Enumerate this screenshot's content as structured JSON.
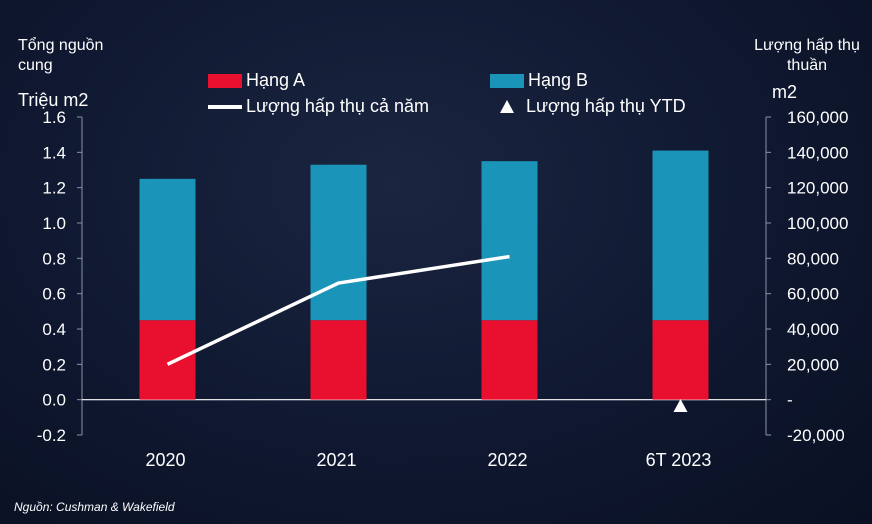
{
  "chart_data": {
    "type": "bar",
    "categories": [
      "2020",
      "2021",
      "2022",
      "6T 2023"
    ],
    "series": [
      {
        "name": "Hạng A",
        "axis": "left",
        "kind": "stacked-bar",
        "color": "#e8102e",
        "values": [
          0.45,
          0.45,
          0.45,
          0.45
        ]
      },
      {
        "name": "Hạng B",
        "axis": "left",
        "kind": "stacked-bar",
        "color": "#1a94b8",
        "values": [
          0.8,
          0.88,
          0.9,
          0.96
        ]
      },
      {
        "name": "Lượng hấp thụ cả năm",
        "axis": "right",
        "kind": "line",
        "color": "#ffffff",
        "values": [
          20000,
          66000,
          81000,
          null
        ]
      },
      {
        "name": "Lượng hấp thụ YTD",
        "axis": "right",
        "kind": "marker",
        "color": "#ffffff",
        "values": [
          null,
          null,
          null,
          -3000
        ]
      }
    ],
    "left_axis": {
      "title": "Tổng nguồn cung",
      "unit": "Triệu m2",
      "ylim": [
        -0.2,
        1.6
      ],
      "ticks": [
        "-0.2",
        "0.0",
        "0.2",
        "0.4",
        "0.6",
        "0.8",
        "1.0",
        "1.2",
        "1.4",
        "1.6"
      ],
      "tick_values": [
        -0.2,
        0.0,
        0.2,
        0.4,
        0.6,
        0.8,
        1.0,
        1.2,
        1.4,
        1.6
      ]
    },
    "right_axis": {
      "title": "Lượng hấp thụ thuần",
      "unit": "m2",
      "ylim": [
        -20000,
        160000
      ],
      "ticks": [
        "-20,000",
        "-",
        "20,000",
        "40,000",
        "60,000",
        "80,000",
        "100,000",
        "120,000",
        "140,000",
        "160,000"
      ],
      "tick_values": [
        -20000,
        0,
        20000,
        40000,
        60000,
        80000,
        100000,
        120000,
        140000,
        160000
      ]
    },
    "legend": [
      {
        "label": "Hạng A",
        "symbol": "red-box"
      },
      {
        "label": "Hạng B",
        "symbol": "blue-box"
      },
      {
        "label": "Lượng hấp thụ cả năm",
        "symbol": "white-line"
      },
      {
        "label": "Lượng hấp thụ YTD",
        "symbol": "white-triangle"
      }
    ],
    "legend_position": "top"
  },
  "source": "Nguồn: Cushman & Wakefield"
}
